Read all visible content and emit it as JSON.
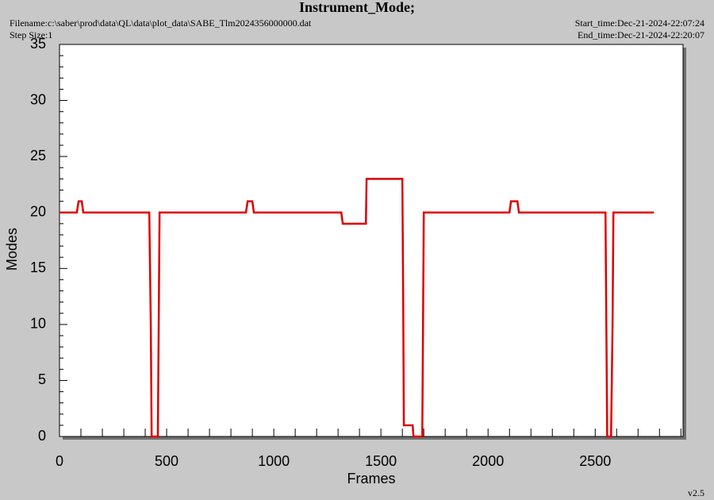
{
  "header": {
    "filename": "Filename:c:\\saber\\prod\\data\\QL\\data\\plot_data\\SABE_Tlm2024356000000.dat",
    "step_size": "Step Size:1",
    "start_time": "Start_time:Dec-21-2024-22:07:24",
    "end_time": "End_time:Dec-21-2024-22:20:07",
    "version": "v2.5"
  },
  "chart_data": {
    "type": "line",
    "title": "Instrument_Mode;",
    "x_label": "Frames",
    "y_label": "Modes",
    "xlim": [
      0,
      2910
    ],
    "ylim": [
      0,
      35
    ],
    "xticks": [
      0,
      500,
      1000,
      1500,
      2000,
      2500
    ],
    "yticks": [
      0,
      5,
      10,
      15,
      20,
      25,
      30,
      35
    ],
    "series": [
      {
        "name": "Instrument_Mode",
        "color": "#dd0000",
        "x": [
          0,
          81,
          89,
          104,
          111,
          419,
          426,
          430,
          459,
          467,
          870,
          878,
          900,
          907,
          1315,
          1322,
          1430,
          1433,
          1600,
          1604,
          1607,
          1648,
          1652,
          1693,
          1700,
          2100,
          2107,
          2137,
          2144,
          2548,
          2556,
          2574,
          2581,
          2585,
          2774
        ],
        "values": [
          20,
          20,
          21,
          21,
          20,
          20,
          10,
          0,
          0,
          20,
          20,
          21,
          21,
          20,
          20,
          19,
          19,
          23,
          23,
          12,
          1,
          1,
          0,
          0,
          20,
          20,
          21,
          21,
          20,
          20,
          0,
          0,
          10,
          20,
          20
        ]
      }
    ]
  }
}
